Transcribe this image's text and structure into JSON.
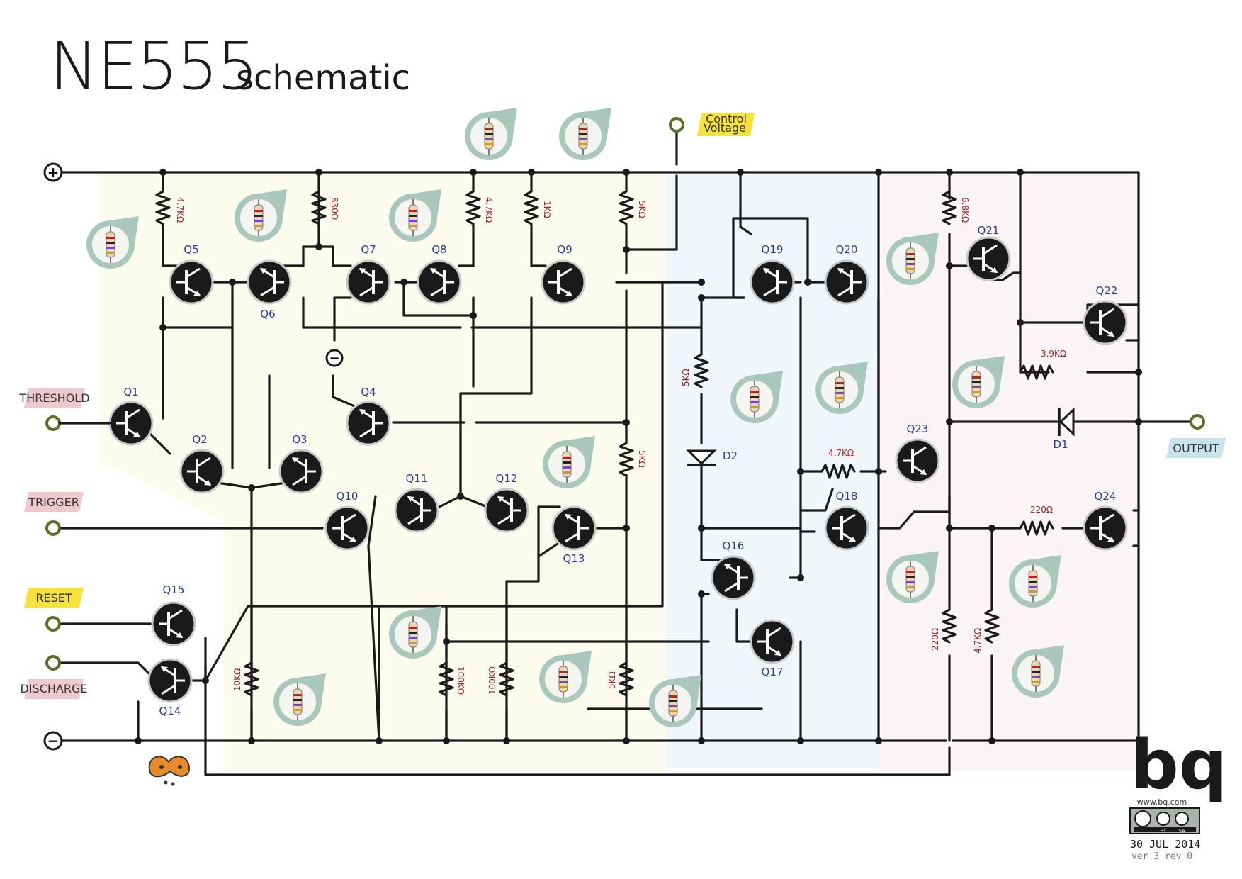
{
  "title": {
    "main": "NE555",
    "sub": "schematic"
  },
  "terminals": {
    "vcc_symbol": "+",
    "gnd_symbol": "−",
    "internal_minus": "−"
  },
  "io_labels": {
    "control_voltage_line1": "Control",
    "control_voltage_line2": "Voltage",
    "threshold": "THRESHOLD",
    "trigger": "TRIGGER",
    "reset": "RESET",
    "discharge": "DISCHARGE",
    "output": "OUTPUT"
  },
  "transistors": {
    "q1": "Q1",
    "q2": "Q2",
    "q3": "Q3",
    "q4": "Q4",
    "q5": "Q5",
    "q6": "Q6",
    "q7": "Q7",
    "q8": "Q8",
    "q9": "Q9",
    "q10": "Q10",
    "q11": "Q11",
    "q12": "Q12",
    "q13": "Q13",
    "q14": "Q14",
    "q15": "Q15",
    "q16": "Q16",
    "q17": "Q17",
    "q18": "Q18",
    "q19": "Q19",
    "q20": "Q20",
    "q21": "Q21",
    "q22": "Q22",
    "q23": "Q23",
    "q24": "Q24"
  },
  "diodes": {
    "d1": "D1",
    "d2": "D2"
  },
  "resistors": {
    "r_q5": "4.7KΩ",
    "r_830": "830Ω",
    "r_q8": "4.7KΩ",
    "r_1k": "1KΩ",
    "r_5k_top": "5KΩ",
    "r_5k_mid": "5KΩ",
    "r_5k_d2": "5KΩ",
    "r_5k_bot": "5KΩ",
    "r_10k": "10KΩ",
    "r_100k_a": "100KΩ",
    "r_100k_b": "100KΩ",
    "r_68k": "6.8KΩ",
    "r_39k": "3.9KΩ",
    "r_47k_q23": "4.7KΩ",
    "r_220_q24": "220Ω",
    "r_220_bot": "220Ω",
    "r_47k_bot": "4.7KΩ"
  },
  "logo": {
    "brand": "bq",
    "url": "www.bq.com",
    "license_by": "BY",
    "license_sa": "SA",
    "date": "30 JUL 2014",
    "version": "ver 3 rev 0"
  },
  "colors": {
    "wire": "#1a1a1a",
    "transistor_fill": "#1a1a1a",
    "callout": "#a9c7bd",
    "zone_yellow": "#fbfbee",
    "zone_blue": "#f1f6fb",
    "zone_pink": "#faf4f7",
    "tag_pink": "#eec9d2",
    "tag_yellow": "#f5e23a",
    "tag_blue": "#c8e4ea",
    "resistor_label": "#9a2424",
    "transistor_label": "#2a3f8c"
  }
}
